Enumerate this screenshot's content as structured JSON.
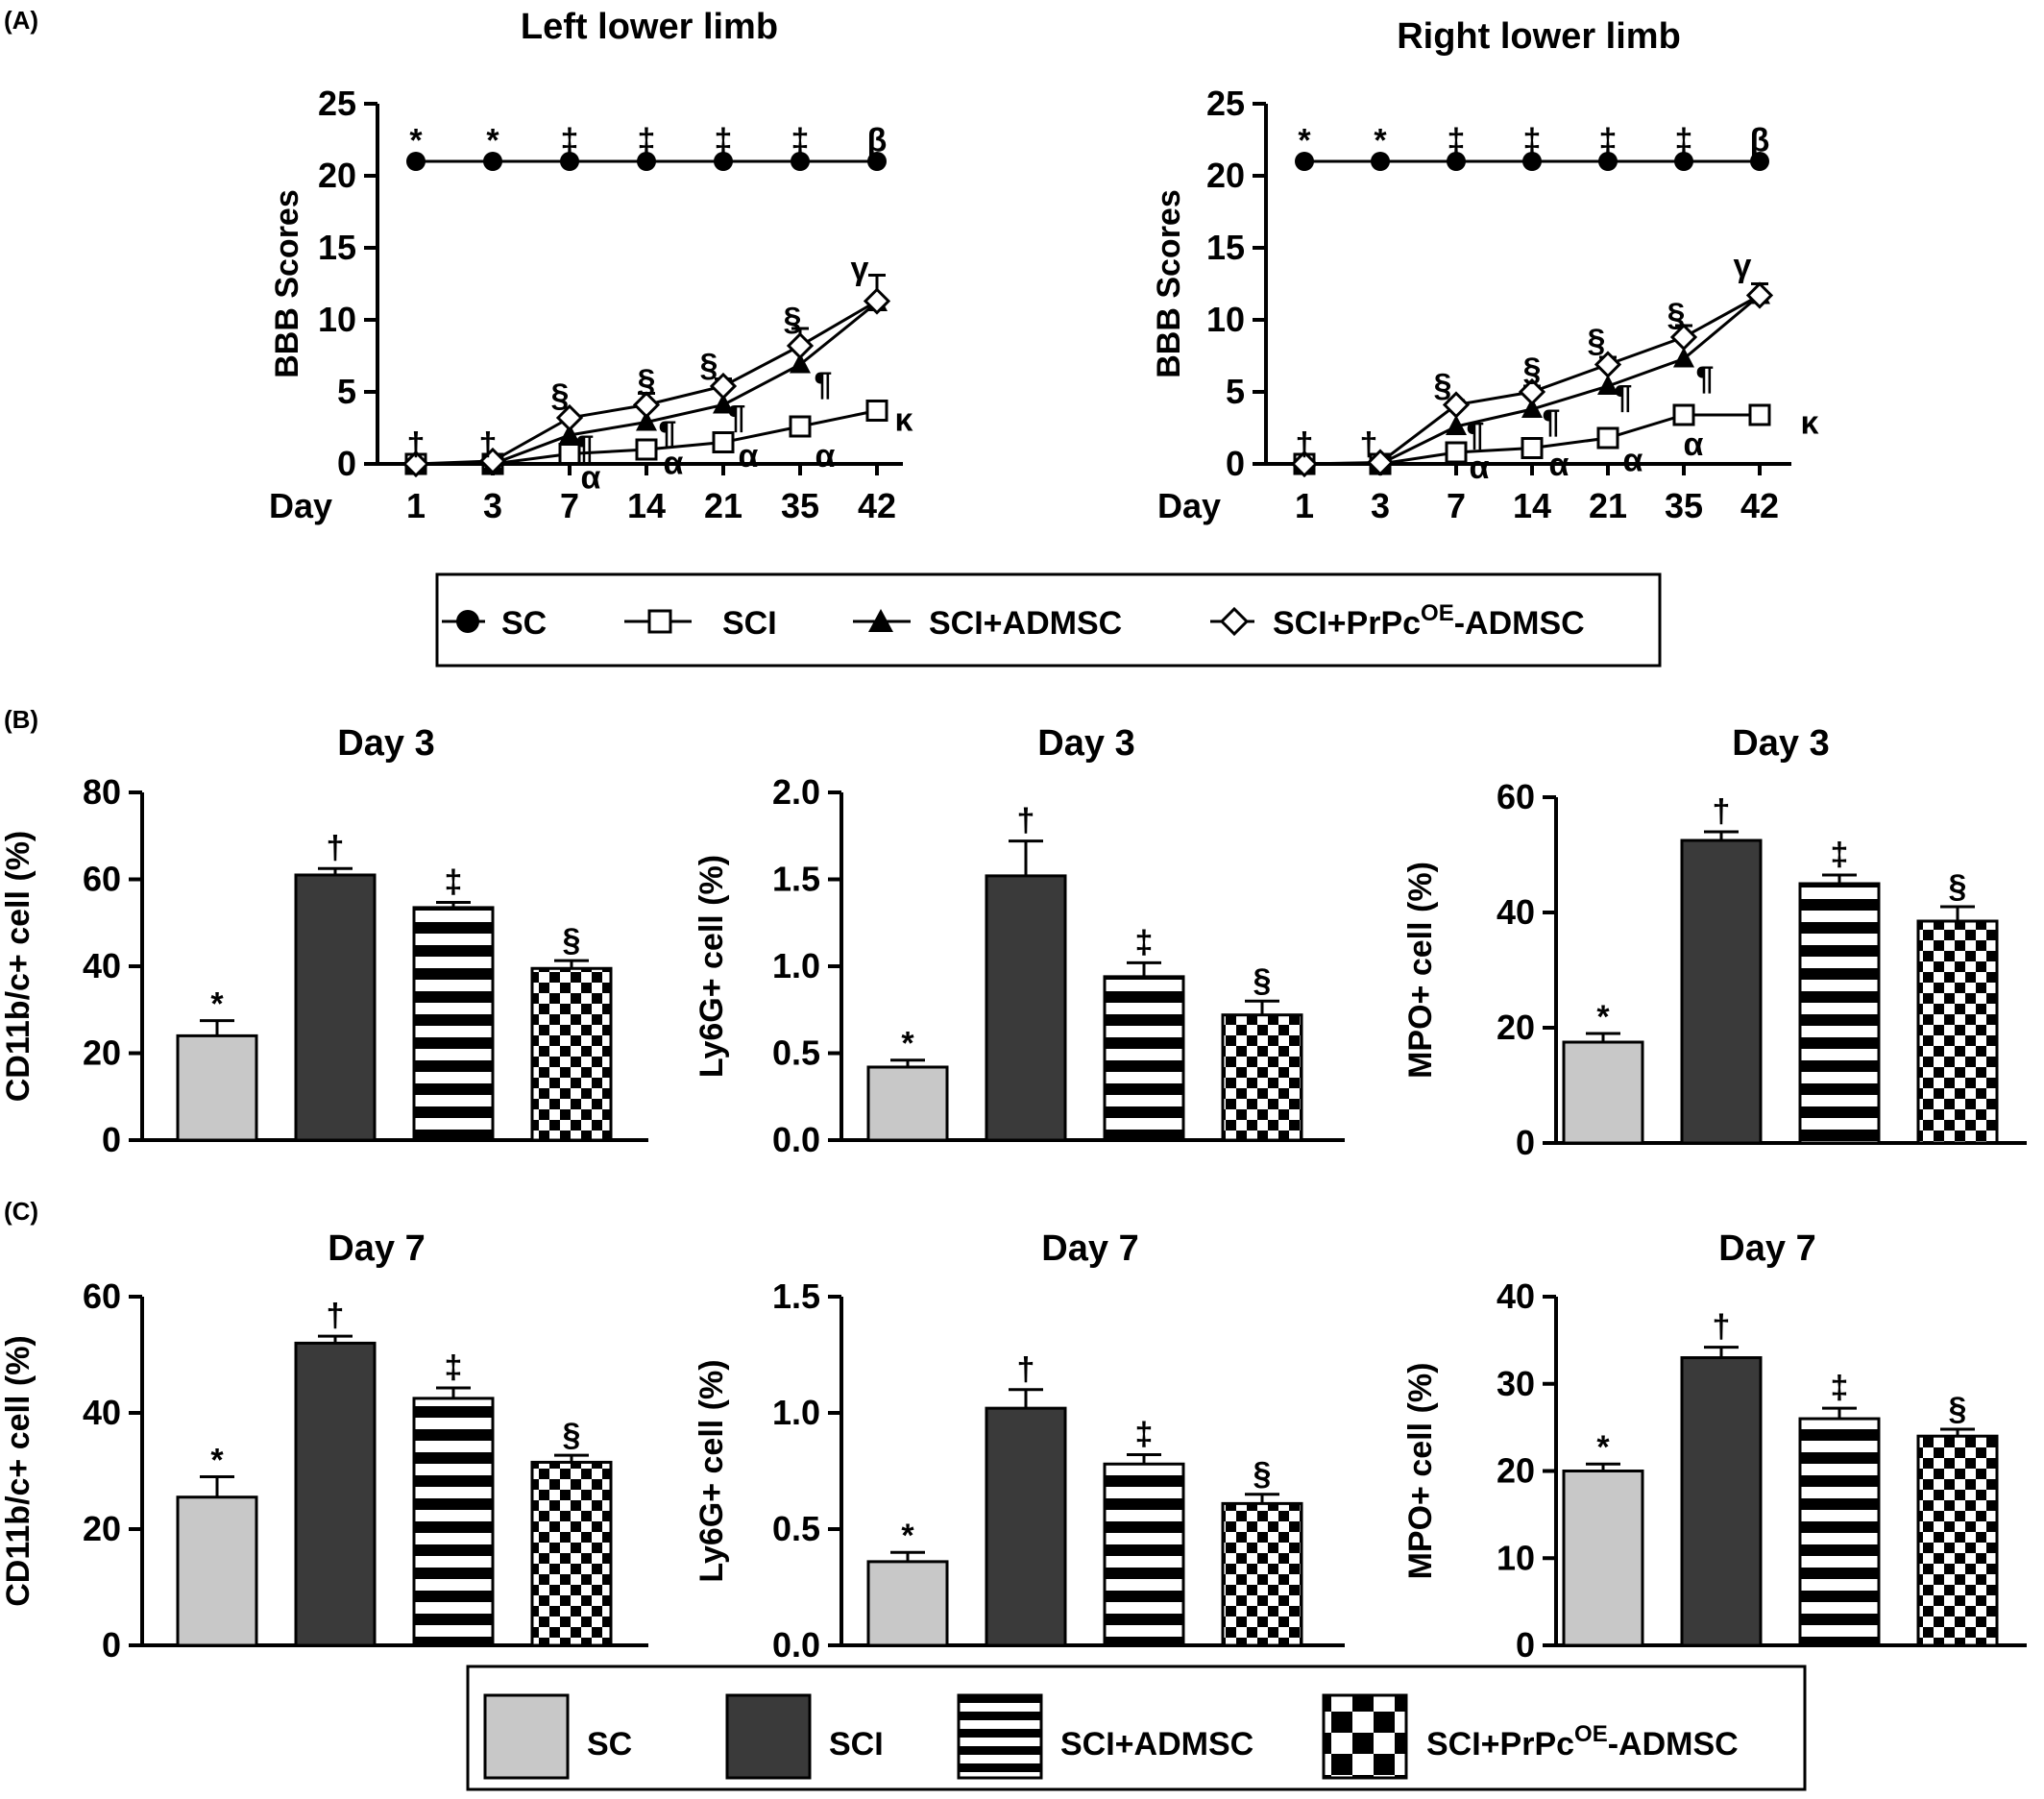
{
  "panel_labels": [
    "(A)",
    "(B)",
    "(C)"
  ],
  "line_legend": {
    "items": [
      {
        "label": "SC",
        "marker": "filled-circle"
      },
      {
        "label": "SCI",
        "marker": "open-square"
      },
      {
        "label": "SCI+ADMSC",
        "marker": "filled-triangle"
      },
      {
        "label": "SCI+PrPc",
        "sup": "OE",
        "label_suffix": "-ADMSC",
        "marker": "open-diamond"
      }
    ]
  },
  "bar_legend": {
    "items": [
      {
        "label": "SC",
        "fill": "light-gray"
      },
      {
        "label": "SCI",
        "fill": "dark-gray"
      },
      {
        "label": "SCI+ADMSC",
        "fill": "horizontal-stripes"
      },
      {
        "label": "SCI+PrPc",
        "sup": "OE",
        "label_suffix": "-ADMSC",
        "fill": "checkerboard"
      }
    ]
  },
  "colors": {
    "sc_bar": "#c8c8c8",
    "sci_bar": "#3a3a3a",
    "line": "#000000"
  },
  "chart_data": [
    {
      "id": "left-lower-limb",
      "type": "line",
      "title": "Left lower limb",
      "ylabel": "BBB Scores",
      "xlabel": "Day",
      "categories": [
        "1",
        "3",
        "7",
        "14",
        "21",
        "35",
        "42"
      ],
      "ylim": [
        0,
        25
      ],
      "yticks": [
        0,
        5,
        10,
        15,
        20,
        25
      ],
      "series": [
        {
          "name": "SC",
          "marker": "filled-circle",
          "values": [
            21,
            21,
            21,
            21,
            21,
            21,
            21
          ],
          "errors": [
            0,
            0,
            0,
            0,
            0,
            0,
            0
          ]
        },
        {
          "name": "SCI",
          "marker": "open-square",
          "values": [
            0,
            0,
            0.7,
            1.0,
            1.5,
            2.6,
            3.7
          ],
          "errors": [
            0,
            0,
            0,
            0,
            0,
            0,
            0
          ]
        },
        {
          "name": "SCI+ADMSC",
          "marker": "filled-triangle",
          "values": [
            0,
            0,
            2.0,
            2.9,
            4.1,
            6.9,
            11.2
          ],
          "errors": [
            0,
            0,
            0,
            0,
            0,
            0,
            0
          ]
        },
        {
          "name": "SCI+PrPc-ADMSC",
          "marker": "open-diamond",
          "values": [
            0,
            0.2,
            3.2,
            4.1,
            5.4,
            8.2,
            11.3
          ],
          "errors": [
            0,
            0,
            0.2,
            0.8,
            0.5,
            1.2,
            1.8
          ]
        }
      ],
      "annotations": [
        {
          "text": "*",
          "cat": 0,
          "y": 22.5,
          "dx": 0
        },
        {
          "text": "*",
          "cat": 1,
          "y": 22.5,
          "dx": 0
        },
        {
          "text": "‡",
          "cat": 2,
          "y": 22.5,
          "dx": 0
        },
        {
          "text": "‡",
          "cat": 3,
          "y": 22.5,
          "dx": 0
        },
        {
          "text": "‡",
          "cat": 4,
          "y": 22.5,
          "dx": 0
        },
        {
          "text": "‡",
          "cat": 5,
          "y": 22.5,
          "dx": 0
        },
        {
          "text": "β",
          "cat": 6,
          "y": 22.5,
          "dx": 0
        },
        {
          "text": "†",
          "cat": 0,
          "y": 1.4,
          "dx": 0
        },
        {
          "text": "†",
          "cat": 1,
          "y": 1.4,
          "dx": -5
        },
        {
          "text": "§",
          "cat": 2,
          "y": 4.8,
          "dx": -10
        },
        {
          "text": "§",
          "cat": 3,
          "y": 5.8,
          "dx": 0
        },
        {
          "text": "§",
          "cat": 4,
          "y": 6.9,
          "dx": -15
        },
        {
          "text": "§",
          "cat": 5,
          "y": 10.1,
          "dx": -8
        },
        {
          "text": "γ",
          "cat": 6,
          "y": 13.6,
          "dx": -18
        },
        {
          "text": "¶",
          "cat": 2,
          "y": 1.2,
          "dx": 16
        },
        {
          "text": "¶",
          "cat": 3,
          "y": 2.2,
          "dx": 22
        },
        {
          "text": "¶",
          "cat": 4,
          "y": 3.3,
          "dx": 14
        },
        {
          "text": "¶",
          "cat": 5,
          "y": 5.6,
          "dx": 24
        },
        {
          "text": "α",
          "cat": 2,
          "y": -0.9,
          "dx": 22
        },
        {
          "text": "α",
          "cat": 3,
          "y": 0.1,
          "dx": 28
        },
        {
          "text": "α",
          "cat": 4,
          "y": 0.6,
          "dx": 26
        },
        {
          "text": "α",
          "cat": 5,
          "y": 0.6,
          "dx": 26
        },
        {
          "text": "κ",
          "cat": 6,
          "y": 3.1,
          "dx": 28
        }
      ]
    },
    {
      "id": "right-lower-limb",
      "type": "line",
      "title": "Right lower limb",
      "ylabel": "BBB Scores",
      "xlabel": "Day",
      "categories": [
        "1",
        "3",
        "7",
        "14",
        "21",
        "35",
        "42"
      ],
      "ylim": [
        0,
        25
      ],
      "yticks": [
        0,
        5,
        10,
        15,
        20,
        25
      ],
      "series": [
        {
          "name": "SC",
          "marker": "filled-circle",
          "values": [
            21,
            21,
            21,
            21,
            21,
            21,
            21
          ],
          "errors": [
            0,
            0,
            0,
            0,
            0,
            0,
            0
          ]
        },
        {
          "name": "SCI",
          "marker": "open-square",
          "values": [
            0,
            0,
            0.8,
            1.1,
            1.8,
            3.4,
            3.4
          ],
          "errors": [
            0,
            0,
            0,
            0,
            0,
            0,
            0
          ]
        },
        {
          "name": "SCI+ADMSC",
          "marker": "filled-triangle",
          "values": [
            0,
            0,
            2.6,
            3.8,
            5.4,
            7.3,
            11.7
          ],
          "errors": [
            0,
            0,
            0,
            0,
            0,
            0,
            0
          ]
        },
        {
          "name": "SCI+PrPc-ADMSC",
          "marker": "open-diamond",
          "values": [
            0,
            0.1,
            4.1,
            5.0,
            6.9,
            8.8,
            11.7
          ],
          "errors": [
            0,
            0,
            0.3,
            0.4,
            0.5,
            0.8,
            0.8
          ]
        }
      ],
      "annotations": [
        {
          "text": "*",
          "cat": 0,
          "y": 22.5,
          "dx": 0
        },
        {
          "text": "*",
          "cat": 1,
          "y": 22.5,
          "dx": 0
        },
        {
          "text": "‡",
          "cat": 2,
          "y": 22.5,
          "dx": 0
        },
        {
          "text": "‡",
          "cat": 3,
          "y": 22.5,
          "dx": 0
        },
        {
          "text": "‡",
          "cat": 4,
          "y": 22.5,
          "dx": 0
        },
        {
          "text": "‡",
          "cat": 5,
          "y": 22.5,
          "dx": 0
        },
        {
          "text": "β",
          "cat": 6,
          "y": 22.5,
          "dx": 0
        },
        {
          "text": "†",
          "cat": 0,
          "y": 1.4,
          "dx": 0
        },
        {
          "text": "†",
          "cat": 1,
          "y": 1.4,
          "dx": -12
        },
        {
          "text": "§",
          "cat": 2,
          "y": 5.5,
          "dx": -14
        },
        {
          "text": "§",
          "cat": 3,
          "y": 6.6,
          "dx": 0
        },
        {
          "text": "§",
          "cat": 4,
          "y": 8.6,
          "dx": -12
        },
        {
          "text": "§",
          "cat": 5,
          "y": 10.4,
          "dx": -8
        },
        {
          "text": "γ",
          "cat": 6,
          "y": 13.8,
          "dx": -18
        },
        {
          "text": "¶",
          "cat": 2,
          "y": 2.1,
          "dx": 20
        },
        {
          "text": "¶",
          "cat": 3,
          "y": 3.0,
          "dx": 20
        },
        {
          "text": "¶",
          "cat": 4,
          "y": 4.7,
          "dx": 16
        },
        {
          "text": "¶",
          "cat": 5,
          "y": 6.0,
          "dx": 22
        },
        {
          "text": "α",
          "cat": 2,
          "y": -0.2,
          "dx": 24
        },
        {
          "text": "α",
          "cat": 3,
          "y": 0.0,
          "dx": 28
        },
        {
          "text": "α",
          "cat": 4,
          "y": 0.3,
          "dx": 26
        },
        {
          "text": "α",
          "cat": 5,
          "y": 1.4,
          "dx": 10
        },
        {
          "text": "κ",
          "cat": 6,
          "y": 2.9,
          "dx": 52
        }
      ]
    },
    {
      "id": "b-cd11b-day3",
      "type": "bar",
      "title": "Day 3",
      "ylabel": "CD11b/c+ cell (%)",
      "categories": [
        "SC",
        "SCI",
        "SCI+ADMSC",
        "SCI+PrPc-ADMSC"
      ],
      "values": [
        24,
        61,
        53.5,
        39.5
      ],
      "errors": [
        3.5,
        1.5,
        1.2,
        1.8
      ],
      "ylim": [
        0,
        80
      ],
      "yticks": [
        "0",
        "20",
        "40",
        "60",
        "80"
      ],
      "significance": [
        "*",
        "†",
        "‡",
        "§"
      ]
    },
    {
      "id": "b-ly6g-day3",
      "type": "bar",
      "title": "Day 3",
      "ylabel": "Ly6G+ cell (%)",
      "categories": [
        "SC",
        "SCI",
        "SCI+ADMSC",
        "SCI+PrPc-ADMSC"
      ],
      "values": [
        0.42,
        1.52,
        0.94,
        0.72
      ],
      "errors": [
        0.04,
        0.2,
        0.08,
        0.08
      ],
      "ylim": [
        0,
        2.0
      ],
      "yticks": [
        "0.0",
        "0.5",
        "1.0",
        "1.5",
        "2.0"
      ],
      "significance": [
        "*",
        "†",
        "‡",
        "§"
      ]
    },
    {
      "id": "b-mpo-day3",
      "type": "bar",
      "title": "Day 3",
      "ylabel": "MPO+ cell (%)",
      "categories": [
        "SC",
        "SCI",
        "SCI+ADMSC",
        "SCI+PrPc-ADMSC"
      ],
      "values": [
        17.5,
        52.5,
        45,
        38.5
      ],
      "errors": [
        1.5,
        1.5,
        1.5,
        2.5
      ],
      "ylim": [
        0,
        60
      ],
      "yticks": [
        "0",
        "20",
        "40",
        "60"
      ],
      "significance": [
        "*",
        "†",
        "‡",
        "§"
      ]
    },
    {
      "id": "c-cd11b-day7",
      "type": "bar",
      "title": "Day 7",
      "ylabel": "CD11b/c+ cell (%)",
      "categories": [
        "SC",
        "SCI",
        "SCI+ADMSC",
        "SCI+PrPc-ADMSC"
      ],
      "values": [
        25.5,
        52,
        42.5,
        31.5
      ],
      "errors": [
        3.5,
        1.2,
        1.8,
        1.2
      ],
      "ylim": [
        0,
        60
      ],
      "yticks": [
        "0",
        "20",
        "40",
        "60"
      ],
      "significance": [
        "*",
        "†",
        "‡",
        "§"
      ]
    },
    {
      "id": "c-ly6g-day7",
      "type": "bar",
      "title": "Day 7",
      "ylabel": "Ly6G+ cell (%)",
      "categories": [
        "SC",
        "SCI",
        "SCI+ADMSC",
        "SCI+PrPc-ADMSC"
      ],
      "values": [
        0.36,
        1.02,
        0.78,
        0.61
      ],
      "errors": [
        0.04,
        0.08,
        0.04,
        0.04
      ],
      "ylim": [
        0,
        1.5
      ],
      "yticks": [
        "0.0",
        "0.5",
        "1.0",
        "1.5"
      ],
      "significance": [
        "*",
        "†",
        "‡",
        "§"
      ]
    },
    {
      "id": "c-mpo-day7",
      "type": "bar",
      "title": "Day 7",
      "ylabel": "MPO+ cell (%)",
      "categories": [
        "SC",
        "SCI",
        "SCI+ADMSC",
        "SCI+PrPc-ADMSC"
      ],
      "values": [
        20,
        33,
        26,
        24
      ],
      "errors": [
        0.8,
        1.2,
        1.2,
        0.8
      ],
      "ylim": [
        0,
        40
      ],
      "yticks": [
        "0",
        "10",
        "20",
        "30",
        "40"
      ],
      "significance": [
        "*",
        "†",
        "‡",
        "§"
      ]
    }
  ]
}
